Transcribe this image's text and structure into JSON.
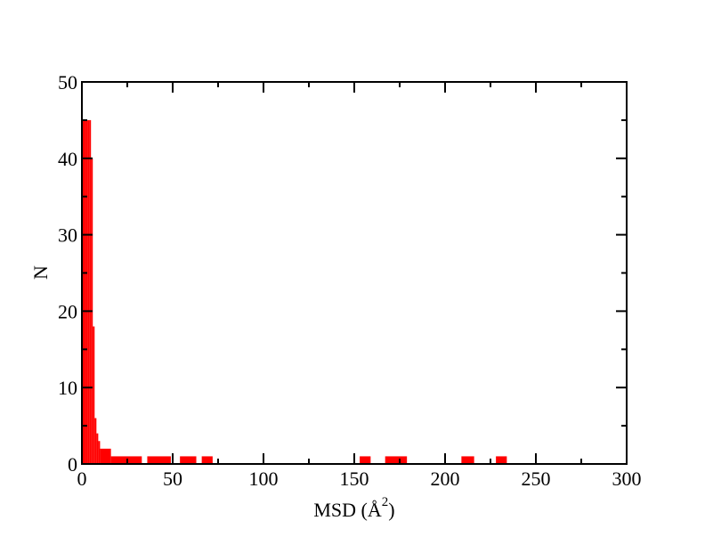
{
  "chart_data": {
    "type": "bar",
    "title": "",
    "xlabel": "MSD (Å",
    "xlabel_superscript": "2",
    "xlabel_suffix": ")",
    "ylabel": "N",
    "xlim": [
      0,
      300
    ],
    "ylim": [
      0,
      50
    ],
    "x_ticks": [
      "0",
      "50",
      "100",
      "150",
      "200",
      "250",
      "300"
    ],
    "y_ticks": [
      "0",
      "10",
      "20",
      "30",
      "40",
      "50"
    ],
    "grid": false,
    "bar_color": "#ff0000",
    "bins": [
      {
        "x_start": 0,
        "x_end": 1,
        "count": 45
      },
      {
        "x_start": 1,
        "x_end": 2,
        "count": 45
      },
      {
        "x_start": 2,
        "x_end": 3,
        "count": 45
      },
      {
        "x_start": 3,
        "x_end": 4,
        "count": 45
      },
      {
        "x_start": 4,
        "x_end": 5,
        "count": 45
      },
      {
        "x_start": 5,
        "x_end": 6,
        "count": 40
      },
      {
        "x_start": 6,
        "x_end": 7,
        "count": 18
      },
      {
        "x_start": 7,
        "x_end": 8,
        "count": 6
      },
      {
        "x_start": 8,
        "x_end": 9,
        "count": 4
      },
      {
        "x_start": 9,
        "x_end": 10,
        "count": 3
      },
      {
        "x_start": 10,
        "x_end": 16,
        "count": 2
      },
      {
        "x_start": 16,
        "x_end": 33,
        "count": 1
      },
      {
        "x_start": 36,
        "x_end": 49,
        "count": 1
      },
      {
        "x_start": 54,
        "x_end": 63,
        "count": 1
      },
      {
        "x_start": 66,
        "x_end": 72,
        "count": 1
      },
      {
        "x_start": 153,
        "x_end": 159,
        "count": 1
      },
      {
        "x_start": 167,
        "x_end": 179,
        "count": 1
      },
      {
        "x_start": 209,
        "x_end": 216,
        "count": 1
      },
      {
        "x_start": 228,
        "x_end": 234,
        "count": 1
      }
    ]
  }
}
